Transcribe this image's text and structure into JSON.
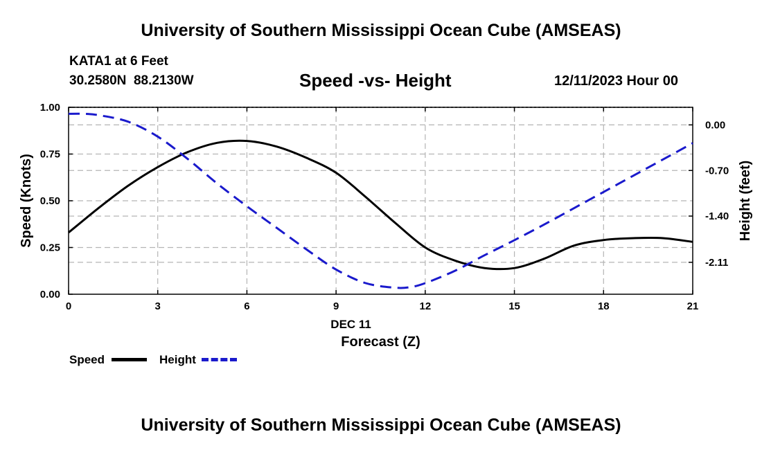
{
  "header": {
    "title_top": "University of Southern Mississippi Ocean Cube (AMSEAS)",
    "station": "KATA1 at 6 Feet",
    "coords": "30.2580N  88.2130W",
    "subtitle": "Speed -vs- Height",
    "datetime": "12/11/2023 Hour 00",
    "title_bottom": "University of Southern Mississippi Ocean Cube (AMSEAS)"
  },
  "legend": {
    "speed_label": "Speed",
    "height_label": "Height"
  },
  "colors": {
    "speed": "#000000",
    "height": "#1a1acc",
    "grid": "#b4b4b4"
  },
  "chart_data": {
    "type": "line",
    "title": "Speed -vs- Height",
    "xlabel": "Forecast (Z)",
    "xlabel_date": "DEC 11",
    "ylabel": "Speed (Knots)",
    "y2label": "Height (feet)",
    "xlim": [
      0,
      21
    ],
    "ylim": [
      0,
      1
    ],
    "y2lim": [
      -2.6,
      0.27
    ],
    "xticks": [
      "0",
      "3",
      "6",
      "9",
      "12",
      "15",
      "18",
      "21"
    ],
    "yticks": [
      "0.00",
      "0.25",
      "0.50",
      "0.75",
      "1.00"
    ],
    "y2ticks": [
      "0.00",
      "-0.70",
      "-1.40",
      "-2.11"
    ],
    "grid": true,
    "series": [
      {
        "name": "Speed",
        "axis": "left",
        "style": "solid",
        "x": [
          0,
          1,
          2,
          3,
          4,
          5,
          6,
          7,
          8,
          9,
          10,
          11,
          12,
          13,
          14,
          15,
          16,
          17,
          18,
          19,
          20,
          21
        ],
        "values": [
          0.33,
          0.46,
          0.58,
          0.68,
          0.76,
          0.81,
          0.82,
          0.79,
          0.73,
          0.65,
          0.52,
          0.38,
          0.25,
          0.18,
          0.14,
          0.14,
          0.19,
          0.26,
          0.29,
          0.3,
          0.3,
          0.28
        ]
      },
      {
        "name": "Height",
        "axis": "right",
        "style": "dashed",
        "x": [
          0,
          0.5,
          1,
          2,
          3,
          4,
          5,
          6,
          7,
          8,
          9,
          10,
          11,
          11.5,
          12,
          13,
          14,
          15,
          16,
          17,
          18,
          19,
          20,
          21
        ],
        "values": [
          0.17,
          0.17,
          0.15,
          0.05,
          -0.18,
          -0.52,
          -0.9,
          -1.25,
          -1.58,
          -1.91,
          -2.22,
          -2.43,
          -2.5,
          -2.49,
          -2.43,
          -2.24,
          -2.0,
          -1.77,
          -1.53,
          -1.28,
          -1.03,
          -0.78,
          -0.53,
          -0.28
        ]
      }
    ]
  }
}
